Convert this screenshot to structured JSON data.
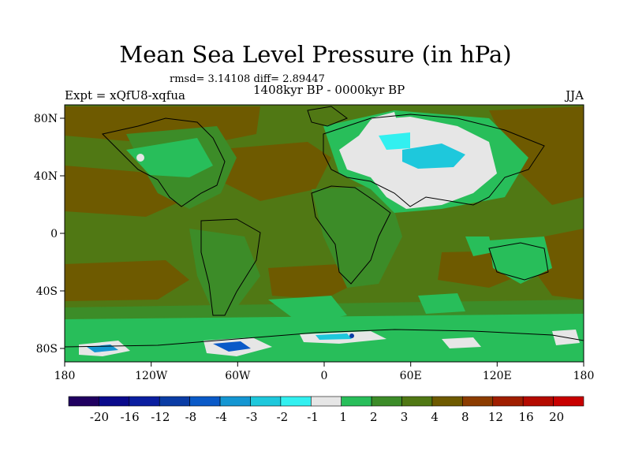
{
  "title": "Mean Sea Level Pressure (in hPa)",
  "stats": "rmsd= 3.14108 diff= 2.89447",
  "period": "1408kyr BP - 0000kyr BP",
  "experiment": "Expt = xQfU8-xqfua",
  "season": "JJA",
  "axes": {
    "x_ticks": [
      "180",
      "120W",
      "60W",
      "0",
      "60E",
      "120E",
      "180"
    ],
    "y_ticks": [
      "80N",
      "40N",
      "0",
      "40S",
      "80S"
    ]
  },
  "colorbar": {
    "labels": [
      "-20",
      "-16",
      "-12",
      "-8",
      "-4",
      "-3",
      "-2",
      "-1",
      "1",
      "2",
      "3",
      "4",
      "8",
      "12",
      "16",
      "20"
    ],
    "colors": [
      "#200060",
      "#0a0a8c",
      "#0a1ea0",
      "#0a3ca5",
      "#0a5ac8",
      "#1496d2",
      "#1ec8dc",
      "#32f0f0",
      "#e6e6e6",
      "#28be5a",
      "#3c8c28",
      "#507814",
      "#6e5a00",
      "#8c3c00",
      "#a01e00",
      "#b40a00",
      "#c80000"
    ]
  },
  "map_colors": {
    "ocean_band_3_4": "#507814",
    "band_2_3": "#3c8c28",
    "band_1_2": "#28be5a",
    "band_4_8": "#6e5a00",
    "near_zero": "#e6e6e6",
    "band_m2_m1": "#32f0f0",
    "band_m4_m2": "#1496d2",
    "band_m8_m4": "#0a5ac8"
  }
}
